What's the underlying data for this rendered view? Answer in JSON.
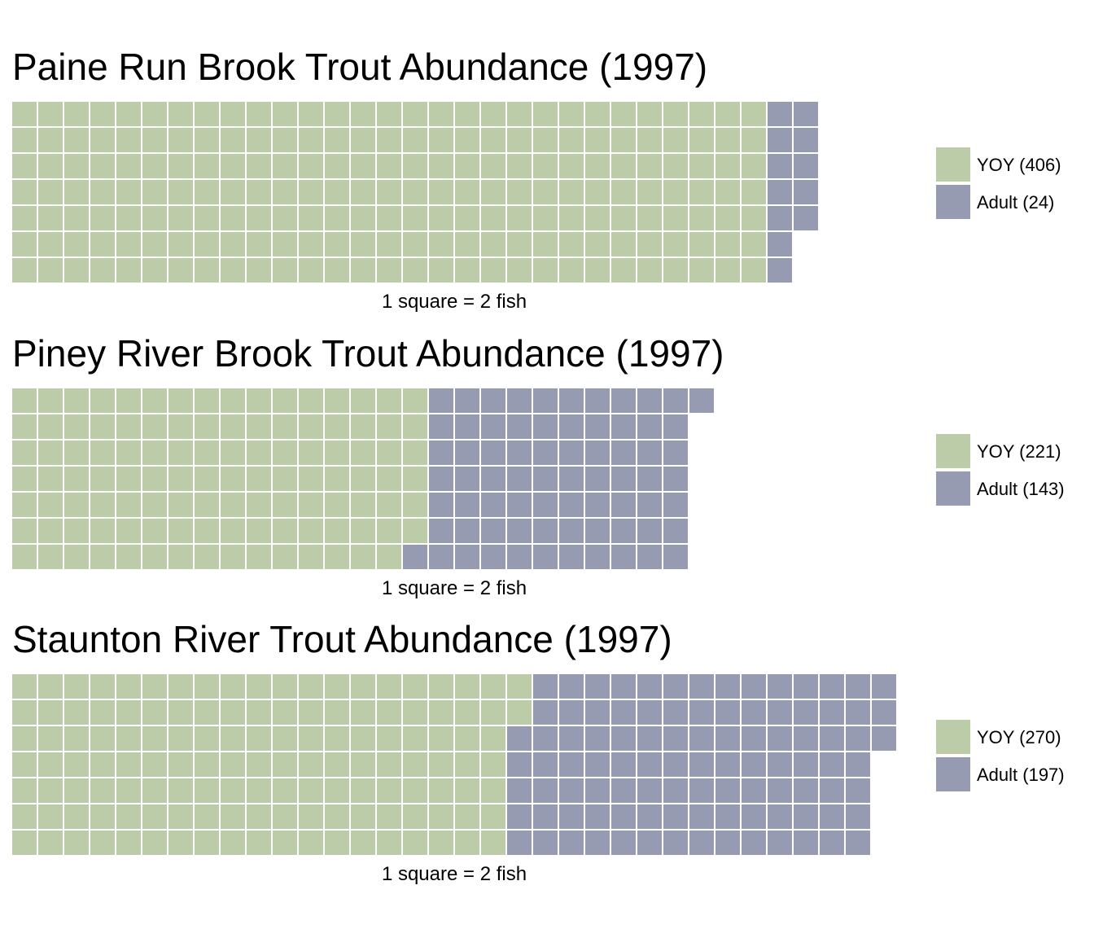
{
  "colors": {
    "yoy": "#bdcca8",
    "adult": "#979bb2",
    "gap": "#ffffff"
  },
  "chart_data": [
    {
      "type": "waffle",
      "title": "Paine Run Brook Trout Abundance (1997)",
      "caption": "1 square = 2 fish",
      "rows": 7,
      "categories": [
        "YOY",
        "Adult"
      ],
      "legend_labels": [
        "YOY (406)",
        "Adult (24)"
      ],
      "values": [
        406,
        24
      ],
      "squares": [
        203,
        12
      ]
    },
    {
      "type": "waffle",
      "title": "Piney River Brook Trout Abundance (1997)",
      "caption": "1 square = 2 fish",
      "rows": 7,
      "categories": [
        "YOY",
        "Adult"
      ],
      "legend_labels": [
        "YOY (221)",
        "Adult (143)"
      ],
      "values": [
        221,
        143
      ],
      "squares": [
        111,
        72
      ]
    },
    {
      "type": "waffle",
      "title": "Staunton River Trout Abundance (1997)",
      "caption": "1 square = 2 fish",
      "rows": 7,
      "categories": [
        "YOY",
        "Adult"
      ],
      "legend_labels": [
        "YOY (270)",
        "Adult (197)"
      ],
      "values": [
        270,
        197
      ],
      "squares": [
        135,
        99
      ]
    }
  ]
}
